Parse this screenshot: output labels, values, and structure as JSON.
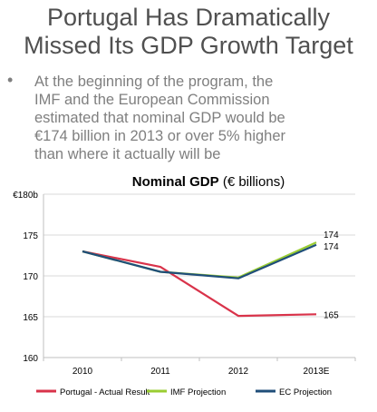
{
  "slide": {
    "title_line1": "Portugal Has Dramatically",
    "title_line2": "Missed Its GDP Growth Target",
    "bullet_symbol": "•",
    "bullet_lines": [
      "At the beginning of the program, the",
      "IMF and the European Commission",
      "estimated that nominal GDP would be",
      "€174 billion in 2013 or over 5% higher",
      "than where it actually will be"
    ]
  },
  "chart_data": {
    "type": "line",
    "title": "Nominal GDP",
    "title_suffix": "(€ billions)",
    "categories": [
      "2010",
      "2011",
      "2012",
      "2013E"
    ],
    "ylim": [
      160,
      180
    ],
    "yticks": [
      {
        "value": 180,
        "label": "€180b"
      },
      {
        "value": 175,
        "label": "175"
      },
      {
        "value": 170,
        "label": "170"
      },
      {
        "value": 165,
        "label": "165"
      },
      {
        "value": 160,
        "label": "160"
      }
    ],
    "grid": true,
    "legend_position": "bottom",
    "series": [
      {
        "name": "Portugal - Actual Result",
        "color": "#d9334a",
        "values": [
          173.0,
          171.1,
          165.1,
          165.3
        ],
        "end_label": "165"
      },
      {
        "name": "IMF Projection",
        "color": "#9acd32",
        "values": [
          173.0,
          170.5,
          169.8,
          174.1
        ],
        "end_label": "174"
      },
      {
        "name": "EC Projection",
        "color": "#1f4e79",
        "values": [
          173.0,
          170.5,
          169.7,
          173.8
        ],
        "end_label": "174"
      }
    ]
  }
}
